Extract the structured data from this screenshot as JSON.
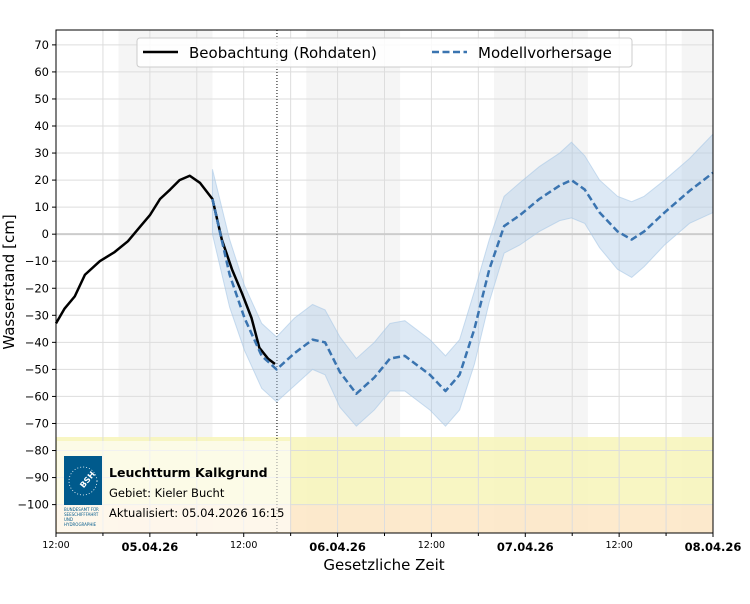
{
  "chart_data": {
    "type": "line",
    "xlabel": "Gesetzliche Zeit",
    "ylabel": "Wasserstand [cm]",
    "ylim": [
      -110.5,
      75.5
    ],
    "yticks": [
      70,
      60,
      50,
      40,
      30,
      20,
      10,
      0,
      -10,
      -20,
      -30,
      -40,
      -50,
      -60,
      -70,
      -80,
      -90,
      -100
    ],
    "ytick_labels": [
      "70",
      "60",
      "50",
      "40",
      "30",
      "20",
      "10",
      "0",
      "−10",
      "−20",
      "−30",
      "−40",
      "−50",
      "−60",
      "−70",
      "−80",
      "−90",
      "−100"
    ],
    "x_unit": "hours since 04.04.26 12:00",
    "xlim": [
      0,
      84
    ],
    "xticks": [
      {
        "x": 0,
        "label": "12:00",
        "bold": false
      },
      {
        "x": 12,
        "label": "05.04.26",
        "bold": true
      },
      {
        "x": 24,
        "label": "12:00",
        "bold": false
      },
      {
        "x": 36,
        "label": "06.04.26",
        "bold": true
      },
      {
        "x": 48,
        "label": "12:00",
        "bold": false
      },
      {
        "x": 60,
        "label": "07.04.26",
        "bold": true
      },
      {
        "x": 72,
        "label": "12:00",
        "bold": false
      },
      {
        "x": 84,
        "label": "08.04.26",
        "bold": true
      }
    ],
    "grid": true,
    "night_bands": [
      [
        8,
        20
      ],
      [
        32,
        44
      ],
      [
        56,
        68
      ],
      [
        80,
        84
      ]
    ],
    "now_marker": 28.25,
    "threshold_bands": [
      {
        "from": -75,
        "to": -100,
        "color": "#f7f5b8"
      },
      {
        "from": -100,
        "to": -110.5,
        "color": "#fde6c4"
      }
    ],
    "legend_position": "top-center",
    "series": [
      {
        "name": "Beobachtung (Rohdaten)",
        "color": "#000000",
        "style": "solid",
        "x": [
          0,
          1.1,
          2.4,
          3.7,
          5.6,
          7.5,
          9.2,
          10.7,
          12,
          13.3,
          14.6,
          15.8,
          17.1,
          18.4,
          20,
          21.2,
          22.5,
          23.8,
          25,
          26,
          27.1,
          28
        ],
        "y": [
          -33,
          -27.5,
          -23,
          -15,
          -10,
          -6.6,
          -2.6,
          2.6,
          7,
          13,
          16.5,
          20,
          21.6,
          19,
          13,
          -2,
          -13,
          -22,
          -31,
          -42,
          -46,
          -48
        ]
      },
      {
        "name": "Modellvorhersage",
        "color": "#3a74b0",
        "style": "dashed",
        "x": [
          20,
          22.2,
          24.1,
          26.3,
          28.2,
          30.5,
          32.8,
          34.4,
          36.3,
          38.4,
          40.7,
          42.7,
          44.6,
          47.8,
          49.8,
          51.6,
          53.5,
          55.4,
          57.3,
          59.3,
          61.8,
          64.4,
          65.9,
          67.6,
          69.5,
          71.8,
          73.6,
          75.2,
          77.8,
          81,
          84
        ],
        "y": [
          13,
          -15,
          -31,
          -45,
          -50,
          -44,
          -39,
          -40,
          -51,
          -59,
          -53,
          -46,
          -45,
          -52,
          -58,
          -52,
          -35,
          -13,
          3,
          7,
          13,
          18,
          20,
          16.5,
          8,
          1,
          -2,
          1,
          8,
          16,
          22.7
        ],
        "lower": [
          0,
          -27,
          -43,
          -57,
          -62,
          -56,
          -50,
          -52,
          -64,
          -71,
          -65,
          -58,
          -58,
          -65,
          -71,
          -65,
          -48,
          -25,
          -7,
          -4,
          1,
          5,
          6,
          4,
          -5,
          -13,
          -16,
          -12,
          -4,
          4,
          8
        ],
        "upper": [
          24,
          -2,
          -19,
          -33,
          -38,
          -31,
          -26,
          -28,
          -38,
          -46,
          -40,
          -33,
          -32,
          -39,
          -45,
          -39,
          -21,
          -2,
          14,
          19,
          25,
          30,
          34,
          29,
          20,
          14,
          12,
          14,
          20,
          28,
          37
        ],
        "band_color": "#a9c8e6"
      }
    ]
  },
  "info_box": {
    "station": "Leuchtturm Kalkgrund",
    "area": "Gebiet: Kieler Bucht",
    "updated": "Aktualisiert: 05.04.2026 16:15",
    "logo_text": "BSH",
    "logo_caption": [
      "BUNDESAMT FÜR",
      "SEESCHIFFFAHRT",
      "UND",
      "HYDROGRAPHIE"
    ],
    "logo_color": "#005a8c"
  }
}
